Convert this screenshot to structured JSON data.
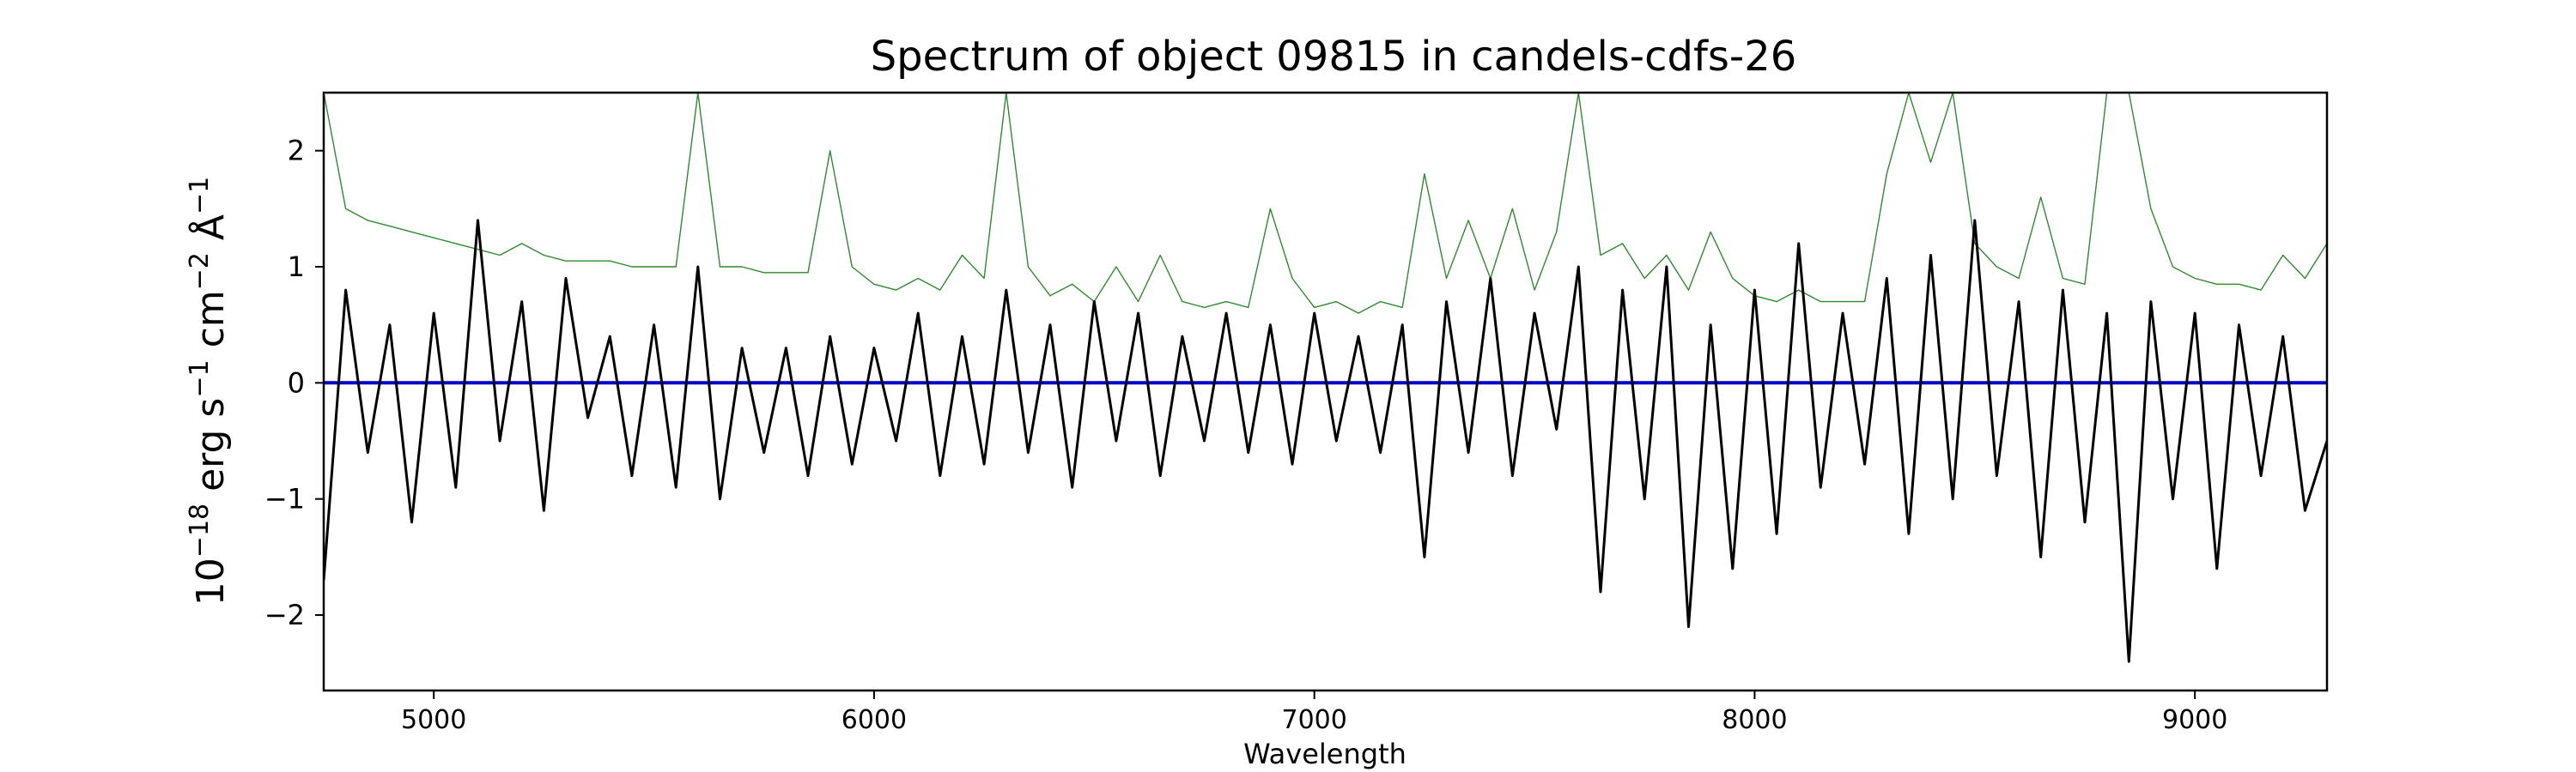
{
  "chart_data": {
    "type": "line",
    "title": "Spectrum of object 09815 in candels-cdfs-26",
    "xlabel": "Wavelength",
    "ylabel": {
      "base": "10",
      "exp1": "−18",
      "erg": " erg s",
      "exp2": "−1",
      "cm": " cm",
      "exp3": "−2",
      "ang": " Å",
      "exp4": "−1"
    },
    "xlim": [
      4750,
      9300
    ],
    "ylim": [
      -2.65,
      2.5
    ],
    "xticks": [
      {
        "value": 5000,
        "label": "5000"
      },
      {
        "value": 6000,
        "label": "6000"
      },
      {
        "value": 7000,
        "label": "7000"
      },
      {
        "value": 8000,
        "label": "8000"
      },
      {
        "value": 9000,
        "label": "9000"
      }
    ],
    "yticks": [
      {
        "value": 2,
        "label": "2"
      },
      {
        "value": 1,
        "label": "1"
      },
      {
        "value": 0,
        "label": "0"
      },
      {
        "value": -1,
        "label": "−1"
      },
      {
        "value": -2,
        "label": "−2"
      }
    ],
    "grid": false,
    "series": [
      {
        "role": "flux",
        "color": "#000000",
        "x": [
          4750,
          4800,
          4850,
          4900,
          4950,
          5000,
          5050,
          5100,
          5150,
          5200,
          5250,
          5300,
          5350,
          5400,
          5450,
          5500,
          5550,
          5600,
          5650,
          5700,
          5750,
          5800,
          5850,
          5900,
          5950,
          6000,
          6050,
          6100,
          6150,
          6200,
          6250,
          6300,
          6350,
          6400,
          6450,
          6500,
          6550,
          6600,
          6650,
          6700,
          6750,
          6800,
          6850,
          6900,
          6950,
          7000,
          7050,
          7100,
          7150,
          7200,
          7250,
          7300,
          7350,
          7400,
          7450,
          7500,
          7550,
          7600,
          7650,
          7700,
          7750,
          7800,
          7850,
          7900,
          7950,
          8000,
          8050,
          8100,
          8150,
          8200,
          8250,
          8300,
          8350,
          8400,
          8450,
          8500,
          8550,
          8600,
          8650,
          8700,
          8750,
          8800,
          8850,
          8900,
          8950,
          9000,
          9050,
          9100,
          9150,
          9200,
          9250,
          9300
        ],
        "y": [
          -1.7,
          0.8,
          -0.6,
          0.5,
          -1.2,
          0.6,
          -0.9,
          1.4,
          -0.5,
          0.7,
          -1.1,
          0.9,
          -0.3,
          0.4,
          -0.8,
          0.5,
          -0.9,
          1.0,
          -1.0,
          0.3,
          -0.6,
          0.3,
          -0.8,
          0.4,
          -0.7,
          0.3,
          -0.5,
          0.6,
          -0.8,
          0.4,
          -0.7,
          0.8,
          -0.6,
          0.5,
          -0.9,
          0.7,
          -0.5,
          0.6,
          -0.8,
          0.4,
          -0.5,
          0.6,
          -0.6,
          0.5,
          -0.7,
          0.6,
          -0.5,
          0.4,
          -0.6,
          0.5,
          -1.5,
          0.7,
          -0.6,
          0.9,
          -0.8,
          0.6,
          -0.4,
          1.0,
          -1.8,
          0.8,
          -1.0,
          1.0,
          -2.1,
          0.5,
          -1.6,
          0.8,
          -1.3,
          1.2,
          -0.9,
          0.6,
          -0.7,
          0.9,
          -1.3,
          1.1,
          -1.0,
          1.4,
          -0.8,
          0.7,
          -1.5,
          0.8,
          -1.2,
          0.6,
          -2.4,
          0.7,
          -1.0,
          0.6,
          -1.6,
          0.5,
          -0.8,
          0.4,
          -1.1,
          -0.5
        ]
      },
      {
        "role": "uncertainty",
        "color": "#2e8b2e",
        "x": [
          4750,
          4800,
          4850,
          4900,
          4950,
          5000,
          5050,
          5100,
          5150,
          5200,
          5250,
          5300,
          5350,
          5400,
          5450,
          5500,
          5550,
          5600,
          5650,
          5700,
          5750,
          5800,
          5850,
          5900,
          5950,
          6000,
          6050,
          6100,
          6150,
          6200,
          6250,
          6300,
          6350,
          6400,
          6450,
          6500,
          6550,
          6600,
          6650,
          6700,
          6750,
          6800,
          6850,
          6900,
          6950,
          7000,
          7050,
          7100,
          7150,
          7200,
          7250,
          7300,
          7350,
          7400,
          7450,
          7500,
          7550,
          7600,
          7650,
          7700,
          7750,
          7800,
          7850,
          7900,
          7950,
          8000,
          8050,
          8100,
          8150,
          8200,
          8250,
          8300,
          8350,
          8400,
          8450,
          8500,
          8550,
          8600,
          8650,
          8700,
          8750,
          8800,
          8850,
          8900,
          8950,
          9000,
          9050,
          9100,
          9150,
          9200,
          9250,
          9300
        ],
        "y": [
          2.5,
          1.5,
          1.4,
          1.35,
          1.3,
          1.25,
          1.2,
          1.15,
          1.1,
          1.2,
          1.1,
          1.05,
          1.05,
          1.05,
          1.0,
          1.0,
          1.0,
          2.5,
          1.0,
          1.0,
          0.95,
          0.95,
          0.95,
          2.0,
          1.0,
          0.85,
          0.8,
          0.9,
          0.8,
          1.1,
          0.9,
          2.5,
          1.0,
          0.75,
          0.85,
          0.7,
          1.0,
          0.7,
          1.1,
          0.7,
          0.65,
          0.7,
          0.65,
          1.5,
          0.9,
          0.65,
          0.7,
          0.6,
          0.7,
          0.65,
          1.8,
          0.9,
          1.4,
          0.9,
          1.5,
          0.8,
          1.3,
          2.5,
          1.1,
          1.2,
          0.9,
          1.1,
          0.8,
          1.3,
          0.9,
          0.75,
          0.7,
          0.8,
          0.7,
          0.7,
          0.7,
          1.8,
          2.5,
          1.9,
          2.5,
          1.2,
          1.0,
          0.9,
          1.6,
          0.9,
          0.85,
          2.5,
          2.5,
          1.5,
          1.0,
          0.9,
          0.85,
          0.85,
          0.8,
          1.1,
          0.9,
          1.2
        ]
      },
      {
        "role": "zero-line",
        "color": "#0000cc",
        "x": [
          4750,
          9300
        ],
        "y": [
          0,
          0
        ]
      }
    ]
  }
}
